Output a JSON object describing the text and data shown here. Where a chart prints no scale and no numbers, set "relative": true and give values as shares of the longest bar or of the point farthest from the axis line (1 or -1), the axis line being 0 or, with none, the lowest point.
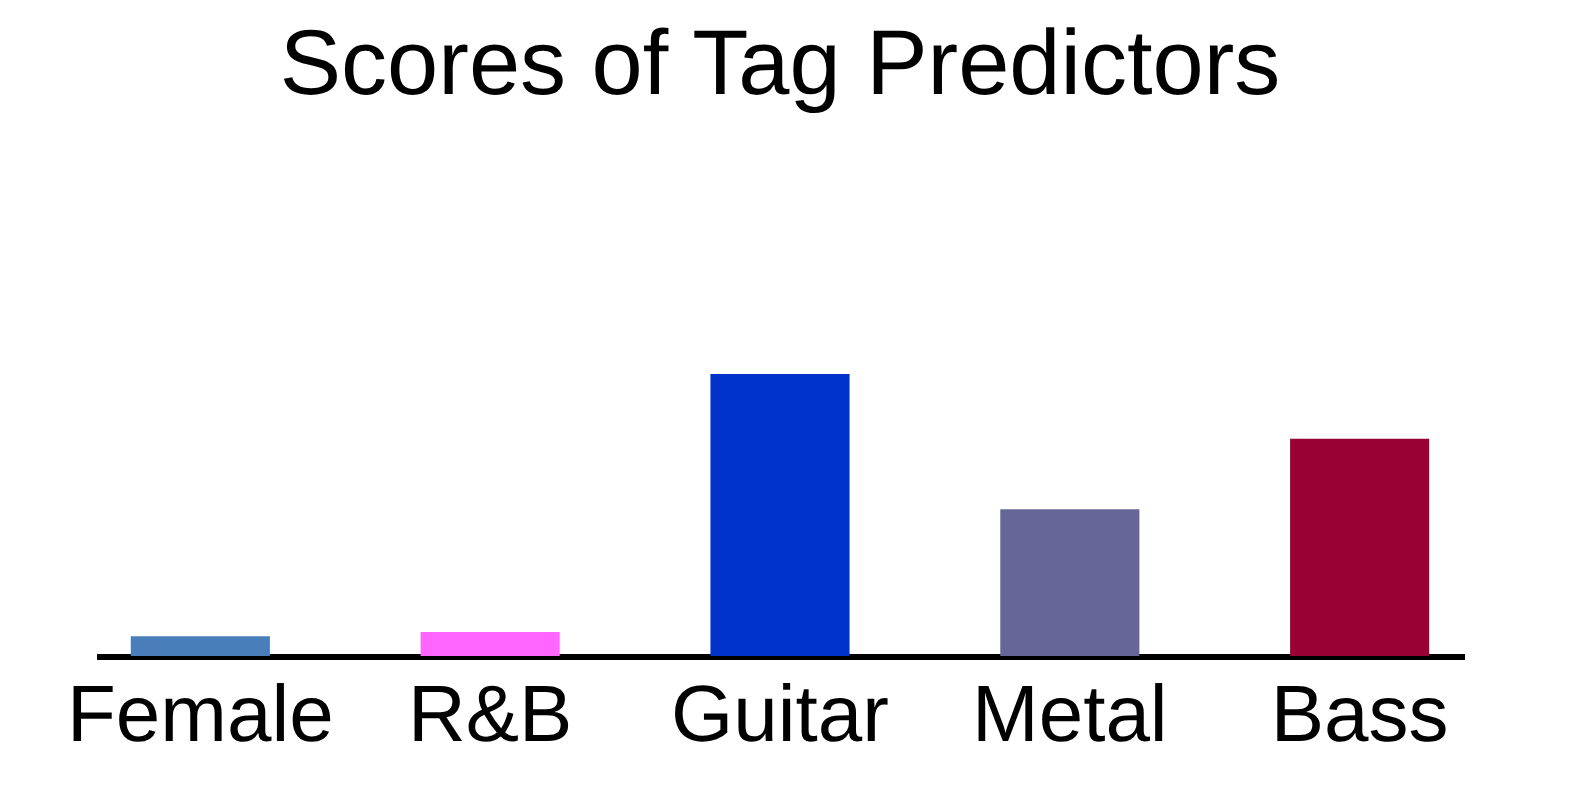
{
  "chart_data": {
    "type": "bar",
    "title": "Scores of Tag Predictors",
    "relative": true,
    "categories": [
      "Female",
      "R&B",
      "Guitar",
      "Metal",
      "Bass"
    ],
    "values": [
      0.07,
      0.085,
      1,
      0.52,
      0.77
    ],
    "colors": [
      "#4a7ebb",
      "#ff66ff",
      "#0033cc",
      "#666699",
      "#990033"
    ],
    "legend": false
  }
}
